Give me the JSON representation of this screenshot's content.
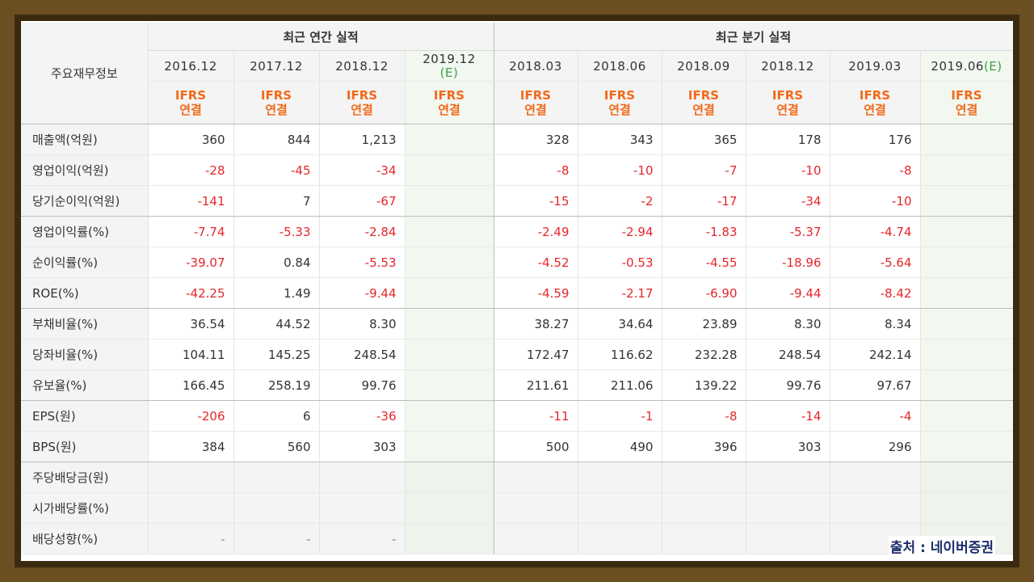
{
  "table": {
    "corner_label": "주요재무정보",
    "annual_title": "최근 연간 실적",
    "quarterly_title": "최근 분기 실적",
    "annual_periods": [
      {
        "label": "2016.12",
        "est": ""
      },
      {
        "label": "2017.12",
        "est": ""
      },
      {
        "label": "2018.12",
        "est": ""
      },
      {
        "label": "2019.12",
        "est": "(E)"
      }
    ],
    "quarterly_periods": [
      {
        "label": "2018.03",
        "est": ""
      },
      {
        "label": "2018.06",
        "est": ""
      },
      {
        "label": "2018.09",
        "est": ""
      },
      {
        "label": "2018.12",
        "est": ""
      },
      {
        "label": "2019.03",
        "est": ""
      },
      {
        "label": "2019.06",
        "est": "(E)"
      }
    ],
    "ifrs_line1": "IFRS",
    "ifrs_line2": "연결",
    "rows": [
      {
        "label": "매출액(억원)",
        "annual": [
          "360",
          "844",
          "1,213",
          ""
        ],
        "quarterly": [
          "328",
          "343",
          "365",
          "178",
          "176",
          ""
        ]
      },
      {
        "label": "영업이익(억원)",
        "annual": [
          "-28",
          "-45",
          "-34",
          ""
        ],
        "quarterly": [
          "-8",
          "-10",
          "-7",
          "-10",
          "-8",
          ""
        ]
      },
      {
        "label": "당기순이익(억원)",
        "annual": [
          "-141",
          "7",
          "-67",
          ""
        ],
        "quarterly": [
          "-15",
          "-2",
          "-17",
          "-34",
          "-10",
          ""
        ]
      },
      {
        "label": "영업이익률(%)",
        "annual": [
          "-7.74",
          "-5.33",
          "-2.84",
          ""
        ],
        "quarterly": [
          "-2.49",
          "-2.94",
          "-1.83",
          "-5.37",
          "-4.74",
          ""
        ]
      },
      {
        "label": "순이익률(%)",
        "annual": [
          "-39.07",
          "0.84",
          "-5.53",
          ""
        ],
        "quarterly": [
          "-4.52",
          "-0.53",
          "-4.55",
          "-18.96",
          "-5.64",
          ""
        ]
      },
      {
        "label": "ROE(%)",
        "annual": [
          "-42.25",
          "1.49",
          "-9.44",
          ""
        ],
        "quarterly": [
          "-4.59",
          "-2.17",
          "-6.90",
          "-9.44",
          "-8.42",
          ""
        ]
      },
      {
        "label": "부채비율(%)",
        "annual": [
          "36.54",
          "44.52",
          "8.30",
          ""
        ],
        "quarterly": [
          "38.27",
          "34.64",
          "23.89",
          "8.30",
          "8.34",
          ""
        ]
      },
      {
        "label": "당좌비율(%)",
        "annual": [
          "104.11",
          "145.25",
          "248.54",
          ""
        ],
        "quarterly": [
          "172.47",
          "116.62",
          "232.28",
          "248.54",
          "242.14",
          ""
        ]
      },
      {
        "label": "유보율(%)",
        "annual": [
          "166.45",
          "258.19",
          "99.76",
          ""
        ],
        "quarterly": [
          "211.61",
          "211.06",
          "139.22",
          "99.76",
          "97.67",
          ""
        ]
      },
      {
        "label": "EPS(원)",
        "annual": [
          "-206",
          "6",
          "-36",
          ""
        ],
        "quarterly": [
          "-11",
          "-1",
          "-8",
          "-14",
          "-4",
          ""
        ]
      },
      {
        "label": "BPS(원)",
        "annual": [
          "384",
          "560",
          "303",
          ""
        ],
        "quarterly": [
          "500",
          "490",
          "396",
          "303",
          "296",
          ""
        ]
      },
      {
        "label": "주당배당금(원)",
        "annual": [
          "",
          "",
          "",
          ""
        ],
        "quarterly": [
          "",
          "",
          "",
          "",
          "",
          ""
        ]
      },
      {
        "label": "시가배당률(%)",
        "annual": [
          "",
          "",
          "",
          ""
        ],
        "quarterly": [
          "",
          "",
          "",
          "",
          "",
          ""
        ]
      },
      {
        "label": "배당성향(%)",
        "annual": [
          "-",
          "-",
          "-",
          ""
        ],
        "quarterly": [
          "",
          "",
          "",
          "",
          "",
          ""
        ]
      }
    ]
  },
  "source_label": "출처 : 네이버증권",
  "colors": {
    "negative": "#e5262b",
    "ifrs": "#f26a1b",
    "estimate_bg": "#f2f7f0",
    "source": "#1c2e6b"
  }
}
